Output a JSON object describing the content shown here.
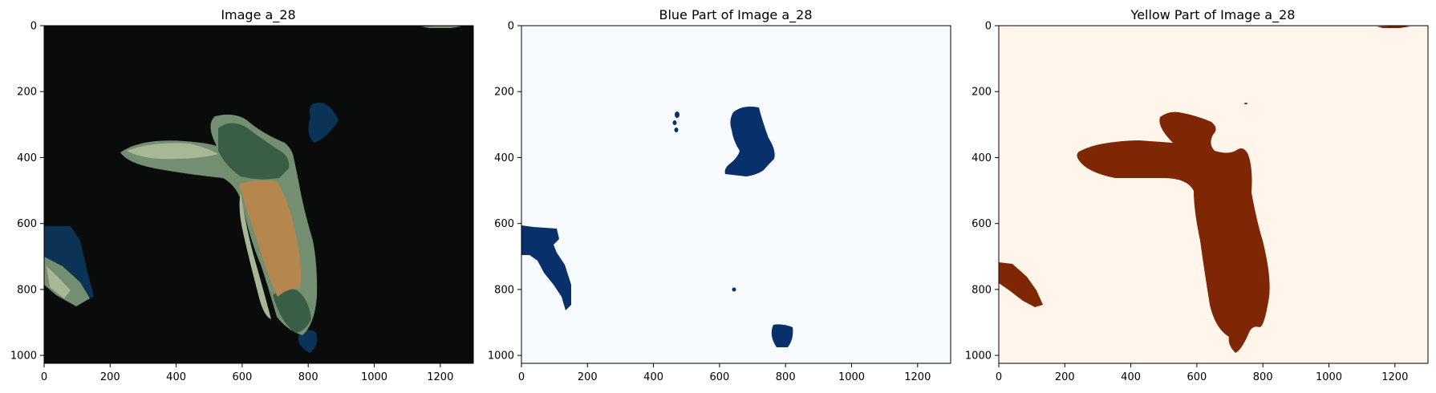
{
  "chart_data": [
    {
      "type": "heatmap",
      "title": "Image a_28",
      "xlabel": "",
      "ylabel": "",
      "xlim": [
        0,
        1300
      ],
      "ylim": [
        1024,
        0
      ],
      "xticks": [
        0,
        200,
        400,
        600,
        800,
        1000,
        1200
      ],
      "yticks": [
        0,
        200,
        400,
        600,
        800,
        1000
      ],
      "colors": {
        "background": "#0a0b0b",
        "dark_blue": "#0b3356",
        "dark_green": "#3a5d45",
        "sage_green": "#738e70",
        "pale_green": "#a8b896",
        "orange": "#b5874e"
      }
    },
    {
      "type": "heatmap",
      "title": "Blue Part of Image a_28",
      "xlabel": "",
      "ylabel": "",
      "xlim": [
        0,
        1300
      ],
      "ylim": [
        1024,
        0
      ],
      "xticks": [
        0,
        200,
        400,
        600,
        800,
        1000,
        1200
      ],
      "yticks": [
        0,
        200,
        400,
        600,
        800,
        1000
      ],
      "colors": {
        "background": "#f7fbff",
        "mask": "#08306b"
      }
    },
    {
      "type": "heatmap",
      "title": "Yellow Part of Image a_28",
      "xlabel": "",
      "ylabel": "",
      "xlim": [
        0,
        1300
      ],
      "ylim": [
        1024,
        0
      ],
      "xticks": [
        0,
        200,
        400,
        600,
        800,
        1000,
        1200
      ],
      "yticks": [
        0,
        200,
        400,
        600,
        800,
        1000
      ],
      "colors": {
        "background": "#fff5eb",
        "mask": "#7f2704"
      }
    }
  ]
}
